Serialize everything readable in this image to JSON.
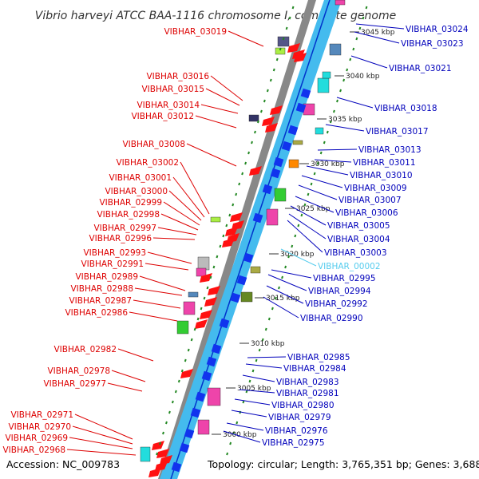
{
  "title": "Vibrio harveyi ATCC BAA-1116 chromosome I, complete genome",
  "accession": "Accession: NC_009783",
  "topology": "Topology: circular; Length: 3,765,351 bp; Genes: 3,688",
  "colors": {
    "left_label": "#dd0000",
    "right_label": "#0000bb",
    "highlight_label": "#55ccee",
    "backbone_gray": "#888888",
    "backbone_cyan": "#44bbee",
    "tick_green": "#228822"
  },
  "kbp_marks": [
    {
      "label": "3045 kbp"
    },
    {
      "label": "3040 kbp"
    },
    {
      "label": "3035 kbp"
    },
    {
      "label": "3030 kbp"
    },
    {
      "label": "3025 kbp"
    },
    {
      "label": "3020 kbp"
    },
    {
      "label": "3015 kbp"
    },
    {
      "label": "3010 kbp"
    },
    {
      "label": "3005 kbp"
    },
    {
      "label": "3000 kbp"
    }
  ],
  "left_labels": [
    "VIBHAR_03019",
    "VIBHAR_03016",
    "VIBHAR_03015",
    "VIBHAR_03014",
    "VIBHAR_03012",
    "VIBHAR_03008",
    "VIBHAR_03002",
    "VIBHAR_03001",
    "VIBHAR_03000",
    "VIBHAR_02999",
    "VIBHAR_02998",
    "VIBHAR_02997",
    "VIBHAR_02996",
    "VIBHAR_02993",
    "VIBHAR_02991",
    "VIBHAR_02989",
    "VIBHAR_02988",
    "VIBHAR_02987",
    "VIBHAR_02986",
    "VIBHAR_02982",
    "VIBHAR_02978",
    "VIBHAR_02977",
    "VIBHAR_02971",
    "VIBHAR_02970",
    "VIBHAR_02969",
    "VIBHAR_02968"
  ],
  "right_labels": [
    "VIBHAR_03024",
    "VIBHAR_03023",
    "VIBHAR_03021",
    "VIBHAR_03018",
    "VIBHAR_03017",
    "VIBHAR_03013",
    "VIBHAR_03011",
    "VIBHAR_03010",
    "VIBHAR_03009",
    "VIBHAR_03007",
    "VIBHAR_03006",
    "VIBHAR_03005",
    "VIBHAR_03004",
    "VIBHAR_03003",
    "VIBHAR_00002",
    "VIBHAR_02995",
    "VIBHAR_02994",
    "VIBHAR_02992",
    "VIBHAR_02990",
    "VIBHAR_02985",
    "VIBHAR_02984",
    "VIBHAR_02983",
    "VIBHAR_02981",
    "VIBHAR_02980",
    "VIBHAR_02979",
    "VIBHAR_02976",
    "VIBHAR_02975"
  ]
}
